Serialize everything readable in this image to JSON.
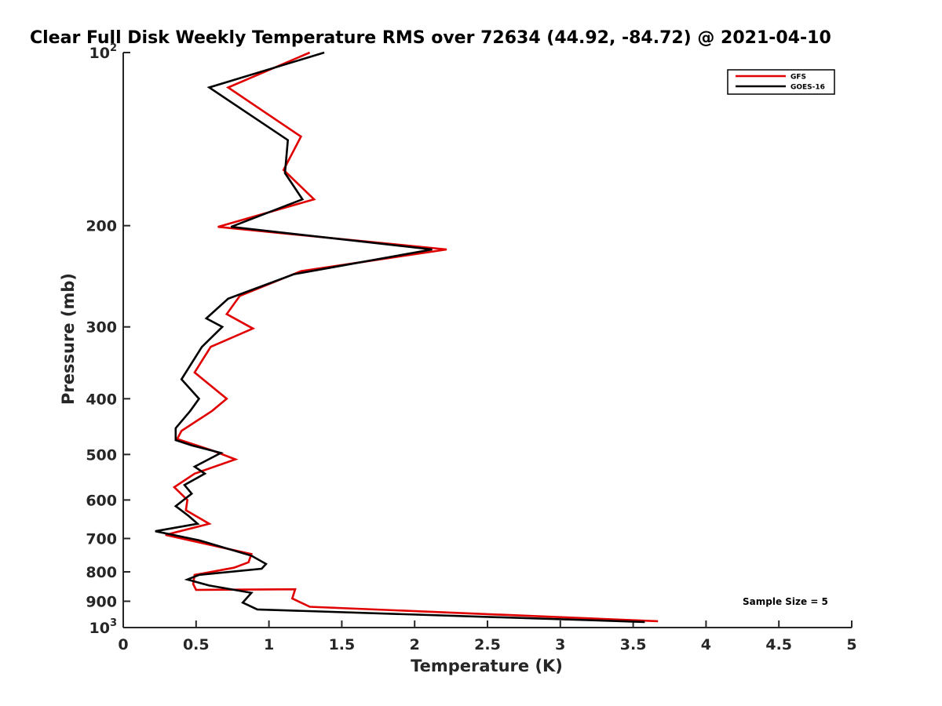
{
  "chart_data": {
    "type": "line",
    "title": "Clear Full Disk Weekly Temperature RMS over 72634 (44.92, -84.72) @ 2021-04-10",
    "xlabel": "Temperature (K)",
    "ylabel": "Pressure (mb)",
    "xlim": [
      0,
      5
    ],
    "ylim": [
      100,
      1000
    ],
    "y_scale": "log",
    "y_reversed": true,
    "grid": false,
    "legend_position": "top-right",
    "x_ticks": [
      0,
      0.5,
      1,
      1.5,
      2,
      2.5,
      3,
      3.5,
      4,
      4.5,
      5
    ],
    "x_tick_labels": [
      "0",
      "0.5",
      "1",
      "1.5",
      "2",
      "2.5",
      "3",
      "3.5",
      "4",
      "4.5",
      "5"
    ],
    "y_ticks": [
      100,
      200,
      300,
      400,
      500,
      600,
      700,
      800,
      900,
      1000
    ],
    "y_tick_labels": [
      {
        "base": "10",
        "exp": "2"
      },
      {
        "base": "200",
        "exp": ""
      },
      {
        "base": "300",
        "exp": ""
      },
      {
        "base": "400",
        "exp": ""
      },
      {
        "base": "500",
        "exp": ""
      },
      {
        "base": "600",
        "exp": ""
      },
      {
        "base": "700",
        "exp": ""
      },
      {
        "base": "800",
        "exp": ""
      },
      {
        "base": "900",
        "exp": ""
      },
      {
        "base": "10",
        "exp": "3"
      }
    ],
    "series": [
      {
        "name": "GFS",
        "color": "#e00000",
        "x": [
          1.28,
          0.72,
          1.22,
          1.1,
          1.31,
          0.65,
          2.22,
          1.22,
          0.8,
          0.71,
          0.89,
          0.6,
          0.49,
          0.71,
          0.61,
          0.4,
          0.37,
          0.61,
          0.77,
          0.49,
          0.35,
          0.44,
          0.43,
          0.59,
          0.29,
          0.88,
          0.86,
          0.76,
          0.49,
          0.48,
          0.5,
          1.18,
          1.16,
          1.28,
          3.67
        ],
        "y": [
          100,
          115,
          140,
          160,
          180,
          201,
          220,
          240,
          265,
          285,
          302,
          325,
          360,
          400,
          420,
          455,
          470,
          492,
          510,
          540,
          570,
          600,
          625,
          660,
          690,
          745,
          770,
          787,
          810,
          840,
          860,
          858,
          890,
          920,
          975
        ]
      },
      {
        "name": "GOES-16",
        "color": "#000000",
        "x": [
          1.38,
          0.59,
          1.13,
          1.11,
          1.23,
          0.74,
          2.12,
          1.17,
          0.72,
          0.57,
          0.68,
          0.54,
          0.4,
          0.52,
          0.46,
          0.36,
          0.36,
          0.47,
          0.67,
          0.49,
          0.56,
          0.42,
          0.47,
          0.36,
          0.45,
          0.51,
          0.22,
          0.52,
          0.88,
          0.98,
          0.95,
          0.52,
          0.44,
          0.59,
          0.88,
          0.82,
          0.92,
          3.58
        ],
        "y": [
          100,
          115,
          142,
          162,
          180,
          201,
          220,
          243,
          268,
          290,
          300,
          325,
          370,
          400,
          420,
          450,
          472,
          482,
          497,
          525,
          540,
          565,
          585,
          615,
          640,
          660,
          680,
          705,
          750,
          775,
          790,
          810,
          825,
          845,
          870,
          905,
          930,
          978
        ]
      }
    ],
    "annotations": [
      {
        "text": "Sample Size = 5",
        "position": "bottom-right"
      }
    ]
  }
}
